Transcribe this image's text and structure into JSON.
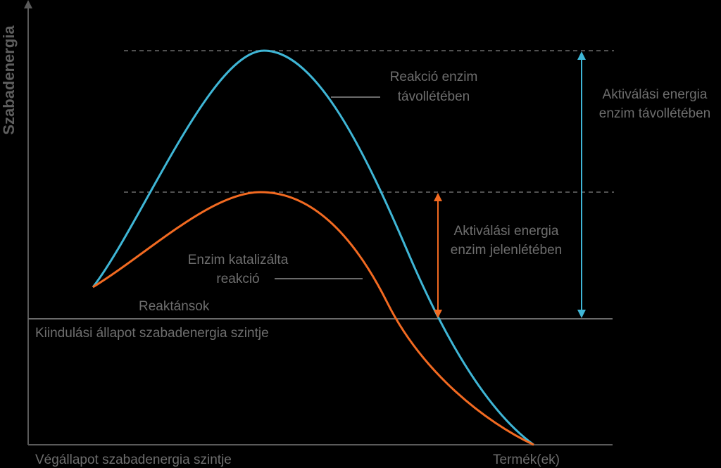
{
  "y_axis_label": "Szabadenergia",
  "labels": {
    "uncatalyzed_line1": "Reakció enzim",
    "uncatalyzed_line2": "távollétében",
    "catalyzed_line1": "Enzim katalizálta",
    "catalyzed_line2": "reakció",
    "activation_with_line1": "Aktiválási energia",
    "activation_with_line2": "enzim jelenlétében",
    "activation_without_line1": "Aktiválási energia",
    "activation_without_line2": "enzim távollétében",
    "reactants": "Reaktánsok",
    "initial_level": "Kiindulási állapot szabadenergia szintje",
    "final_level": "Végállapot szabadenergia szintje",
    "products": "Termék(ek)"
  },
  "colors": {
    "background": "#000000",
    "axis": "#5a5a5a",
    "dashed": "#6a6a6a",
    "uncatalyzed": "#3fb6d6",
    "catalyzed": "#f26a21",
    "text": "#6e6e6e"
  }
}
